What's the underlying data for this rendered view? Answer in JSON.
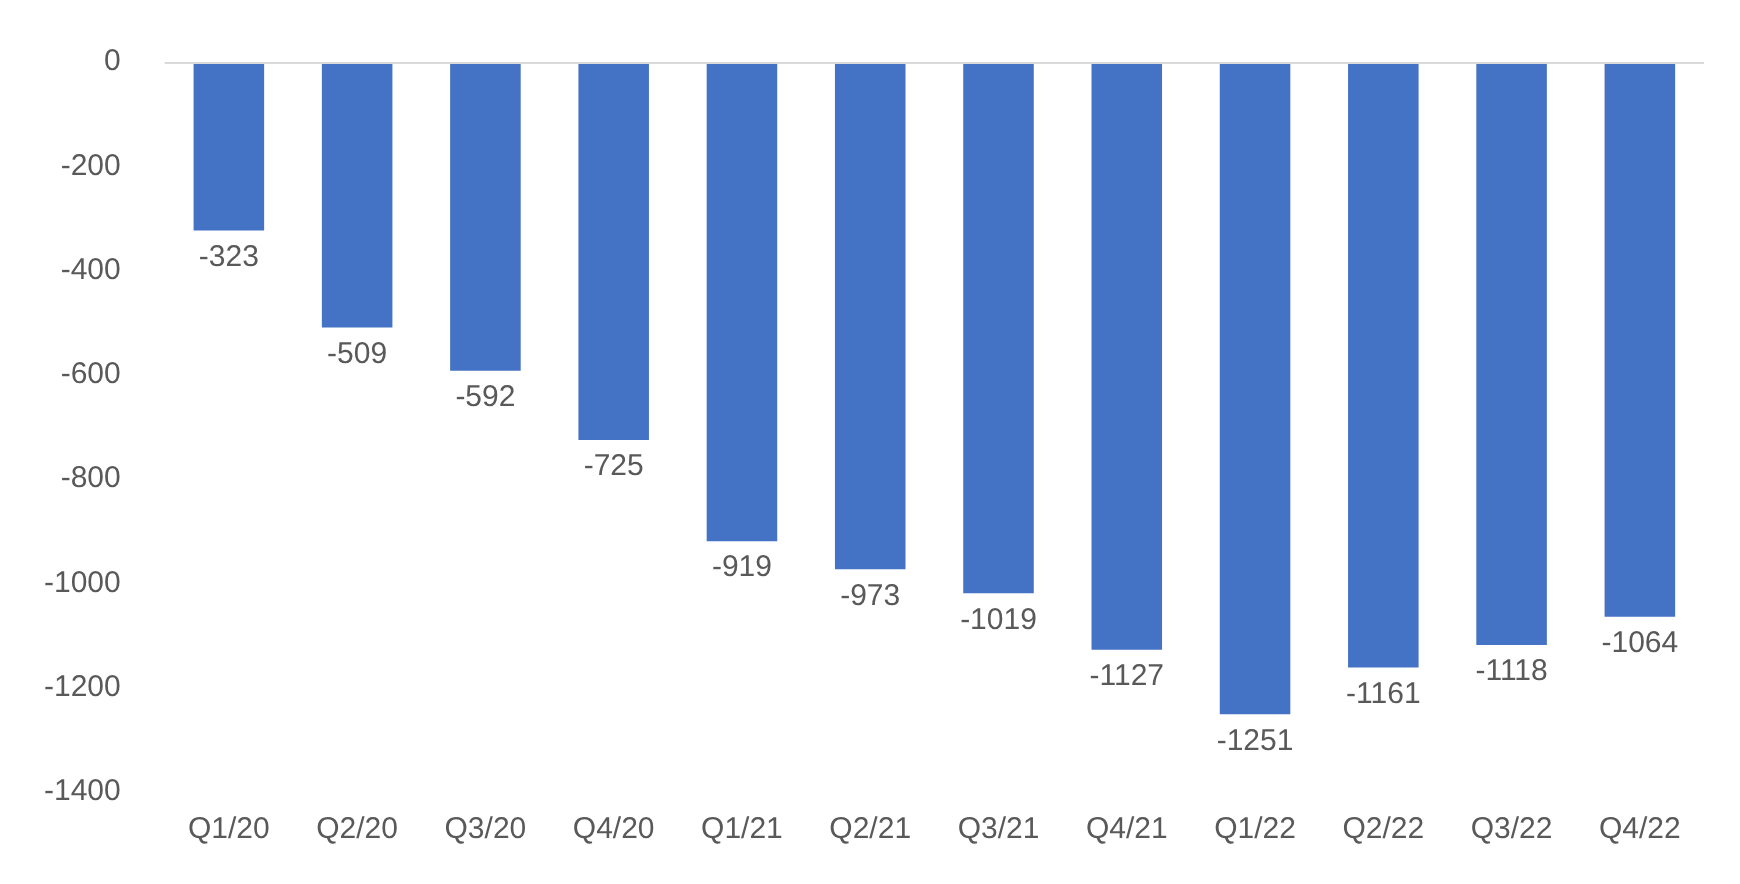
{
  "chart_data": {
    "type": "bar",
    "categories": [
      "Q1/20",
      "Q2/20",
      "Q3/20",
      "Q4/20",
      "Q1/21",
      "Q2/21",
      "Q3/21",
      "Q4/21",
      "Q1/22",
      "Q2/22",
      "Q3/22",
      "Q4/22"
    ],
    "values": [
      -323,
      -509,
      -592,
      -725,
      -919,
      -973,
      -1019,
      -1127,
      -1251,
      -1161,
      -1118,
      -1064
    ],
    "color": "#4472c4",
    "ylim": [
      -1400,
      0
    ],
    "yticks": [
      -1400,
      -1200,
      -1000,
      -800,
      -600,
      -400,
      -200,
      0
    ],
    "grid": false,
    "legend": false,
    "data_labels": true
  }
}
